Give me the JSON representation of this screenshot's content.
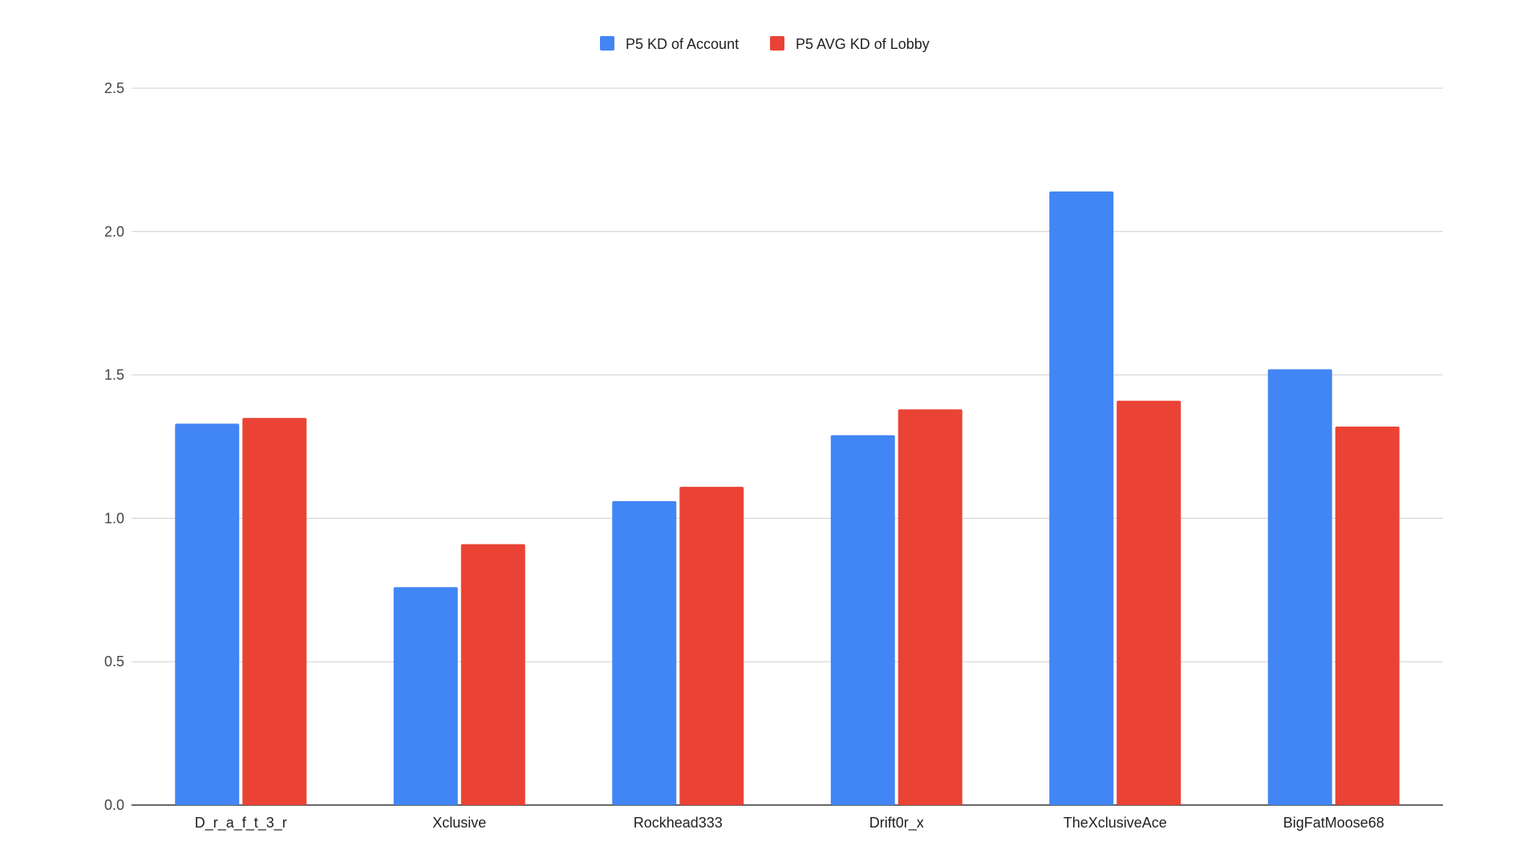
{
  "chart_data": {
    "type": "bar",
    "title": "",
    "xlabel": "",
    "ylabel": "",
    "ylim": [
      0,
      2.5
    ],
    "yticks": [
      "0.0",
      "0.5",
      "1.0",
      "1.5",
      "2.0",
      "2.5"
    ],
    "grid": true,
    "legend_position": "top-center",
    "categories": [
      "D_r_a_f_t_3_r",
      "Xclusive",
      "Rockhead333",
      "Drift0r_x",
      "TheXclusiveAce",
      "BigFatMoose68"
    ],
    "series": [
      {
        "name": "P5 KD of Account",
        "color": "#4285f4",
        "values": [
          1.33,
          0.76,
          1.06,
          1.29,
          2.14,
          1.52
        ]
      },
      {
        "name": "P5 AVG KD of Lobby",
        "color": "#ea4335",
        "values": [
          1.35,
          0.91,
          1.11,
          1.38,
          1.41,
          1.32
        ]
      }
    ]
  }
}
